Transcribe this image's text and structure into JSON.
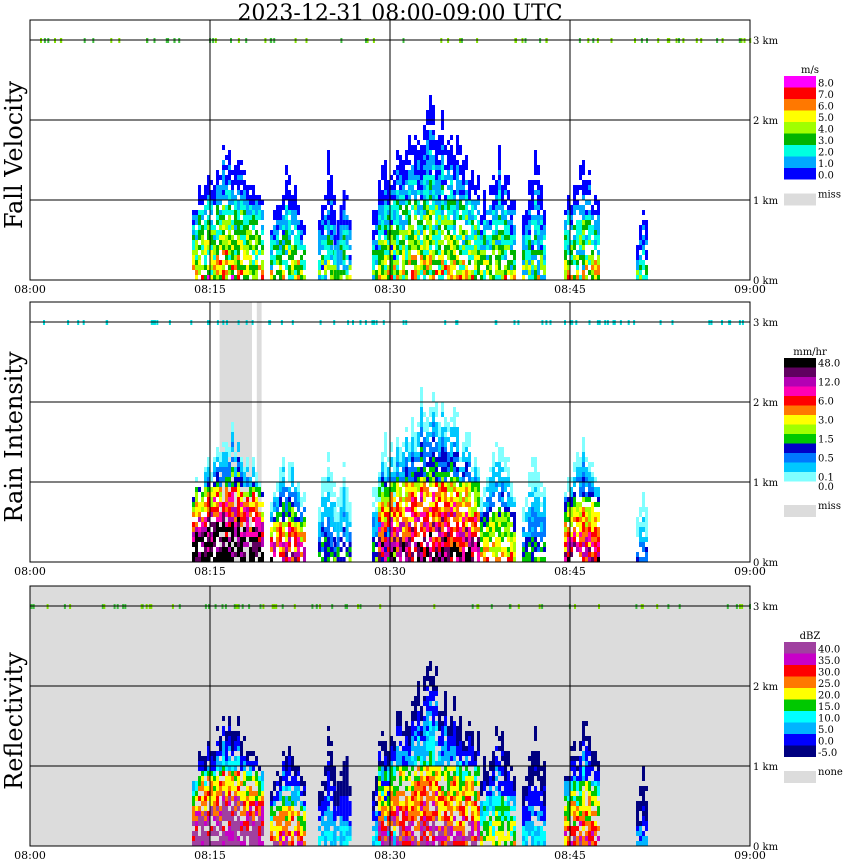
{
  "title": "2023-12-31   08:00-09:00 UTC",
  "panels": [
    {
      "ylabel": "Fall Velocity",
      "unit": "m/s",
      "bg": "#ffffff",
      "legend": [
        {
          "label": "8.0",
          "color": "#ff00ff"
        },
        {
          "label": "7.0",
          "color": "#ff0000"
        },
        {
          "label": "6.0",
          "color": "#ff7800"
        },
        {
          "label": "5.0",
          "color": "#ffff00"
        },
        {
          "label": "4.0",
          "color": "#a0ff00"
        },
        {
          "label": "3.0",
          "color": "#00b400"
        },
        {
          "label": "2.0",
          "color": "#00ffe0"
        },
        {
          "label": "1.0",
          "color": "#00a8ff"
        },
        {
          "label": "0.0",
          "color": "#0000ff"
        }
      ],
      "missing_label": "miss",
      "missing_color": "#dcdcdc"
    },
    {
      "ylabel": "Rain Intensity",
      "unit": "mm/hr",
      "bg": "#ffffff",
      "legend": [
        {
          "label": "48.0",
          "color": "#000000"
        },
        {
          "label": "",
          "color": "#600060"
        },
        {
          "label": "12.0",
          "color": "#b400b4"
        },
        {
          "label": "",
          "color": "#ff00b4"
        },
        {
          "label": "6.0",
          "color": "#ff0000"
        },
        {
          "label": "",
          "color": "#ff7800"
        },
        {
          "label": "3.0",
          "color": "#ffff00"
        },
        {
          "label": "",
          "color": "#a0ff00"
        },
        {
          "label": "1.5",
          "color": "#00c800"
        },
        {
          "label": "",
          "color": "#0000c8"
        },
        {
          "label": "0.5",
          "color": "#0078ff"
        },
        {
          "label": "",
          "color": "#00c8ff"
        },
        {
          "label": "0.1",
          "color": "#80ffff"
        },
        {
          "label": "0.0",
          "color": "#ffffff"
        }
      ],
      "missing_label": "miss",
      "missing_color": "#dcdcdc"
    },
    {
      "ylabel": "Reflectivity",
      "unit": "dBZ",
      "bg": "#dcdcdc",
      "legend": [
        {
          "label": "40.0",
          "color": "#a040a0"
        },
        {
          "label": "35.0",
          "color": "#c800c8"
        },
        {
          "label": "30.0",
          "color": "#ff0000"
        },
        {
          "label": "25.0",
          "color": "#ff7800"
        },
        {
          "label": "20.0",
          "color": "#ffff00"
        },
        {
          "label": "15.0",
          "color": "#00c800"
        },
        {
          "label": "10.0",
          "color": "#00ffff"
        },
        {
          "label": "5.0",
          "color": "#00b4ff"
        },
        {
          "label": "0.0",
          "color": "#0000ff"
        },
        {
          "label": "-5.0",
          "color": "#000080"
        }
      ],
      "missing_label": "none",
      "missing_color": "#dcdcdc"
    }
  ],
  "chart_data": {
    "type": "heatmap",
    "title": "2023-12-31   08:00-09:00 UTC",
    "x_ticks": [
      "08:00",
      "08:15",
      "08:30",
      "08:45",
      "09:00"
    ],
    "x_range_min": [
      0,
      60
    ],
    "y_ticks": [
      "0 km",
      "1 km",
      "2 km",
      "3 km"
    ],
    "y_range_km": [
      0,
      3.0
    ],
    "rain_cells": [
      {
        "t0": 13.5,
        "t1": 19.5,
        "top": 1.6,
        "core": 0.9,
        "level": 1.0
      },
      {
        "t0": 20.0,
        "t1": 22.8,
        "top": 1.3,
        "core": 0.5,
        "level": 0.7
      },
      {
        "t0": 24.0,
        "t1": 25.5,
        "top": 1.4,
        "core": 0.3,
        "level": 0.3
      },
      {
        "t0": 25.3,
        "t1": 26.8,
        "top": 1.1,
        "core": 0.2,
        "level": 0.3
      },
      {
        "t0": 28.5,
        "t1": 30.5,
        "top": 1.4,
        "core": 0.3,
        "level": 0.3
      },
      {
        "t0": 29.0,
        "t1": 37.5,
        "top": 2.1,
        "core": 1.0,
        "level": 0.8
      },
      {
        "t0": 37.5,
        "t1": 40.5,
        "top": 1.5,
        "core": 0.6,
        "level": 0.5
      },
      {
        "t0": 41.0,
        "t1": 43.0,
        "top": 1.4,
        "core": 0.3,
        "level": 0.3
      },
      {
        "t0": 44.5,
        "t1": 47.5,
        "top": 1.5,
        "core": 0.8,
        "level": 0.7
      },
      {
        "t0": 50.5,
        "t1": 51.5,
        "top": 0.9,
        "core": 0.2,
        "level": 0.2
      }
    ],
    "rain_missing_intervals_min": [
      [
        15.8,
        18.5
      ],
      [
        18.9,
        19.3
      ]
    ]
  }
}
